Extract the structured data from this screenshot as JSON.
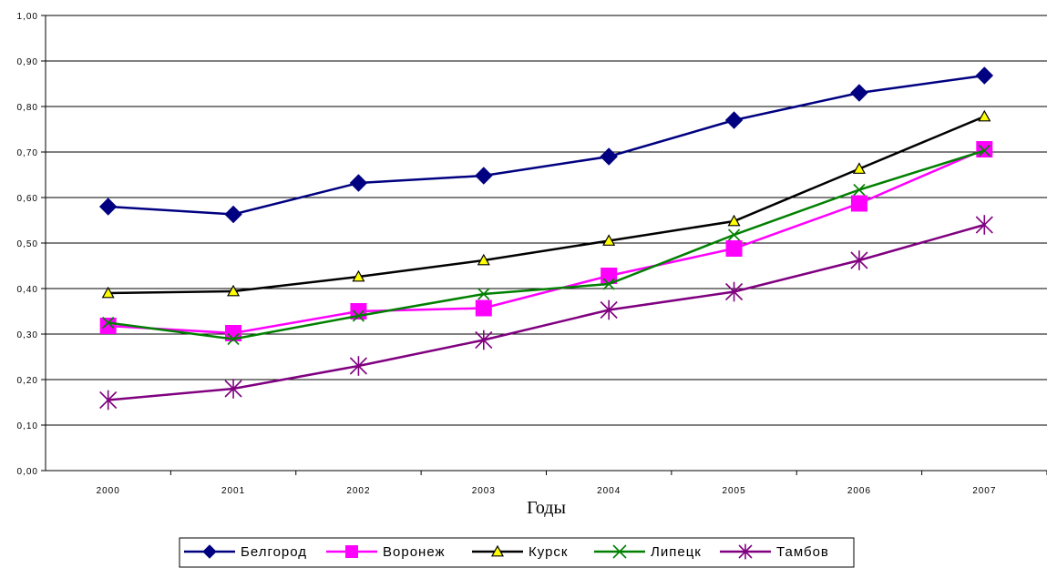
{
  "chart_data": {
    "type": "line",
    "title": "",
    "xlabel": "Годы",
    "ylabel": "",
    "categories": [
      "2000",
      "2001",
      "2002",
      "2003",
      "2004",
      "2005",
      "2006",
      "2007"
    ],
    "y_tick_labels": [
      "0,00",
      "0,10",
      "0,20",
      "0,30",
      "0,40",
      "0,50",
      "0,60",
      "0,70",
      "0,80",
      "0,90",
      "1,00"
    ],
    "ylim": [
      0,
      1
    ],
    "grid": true,
    "legend_position": "bottom",
    "series": [
      {
        "name": "Белгород",
        "color": "#000080",
        "marker": "diamond",
        "values": [
          0.58,
          0.563,
          0.632,
          0.648,
          0.69,
          0.77,
          0.83,
          0.868
        ]
      },
      {
        "name": "Воронеж",
        "color": "#FF00FF",
        "marker": "square",
        "values": [
          0.318,
          0.302,
          0.35,
          0.357,
          0.428,
          0.488,
          0.587,
          0.706
        ]
      },
      {
        "name": "Курск",
        "color": "#000000",
        "marker": "triangle",
        "values": [
          0.39,
          0.394,
          0.426,
          0.462,
          0.505,
          0.548,
          0.663,
          0.778
        ]
      },
      {
        "name": "Липецк",
        "color": "#008000",
        "marker": "x",
        "values": [
          0.325,
          0.289,
          0.34,
          0.388,
          0.41,
          0.518,
          0.617,
          0.703
        ]
      },
      {
        "name": "Тамбов",
        "color": "#800080",
        "marker": "asterisk",
        "values": [
          0.155,
          0.18,
          0.23,
          0.287,
          0.353,
          0.393,
          0.462,
          0.54
        ]
      }
    ]
  }
}
